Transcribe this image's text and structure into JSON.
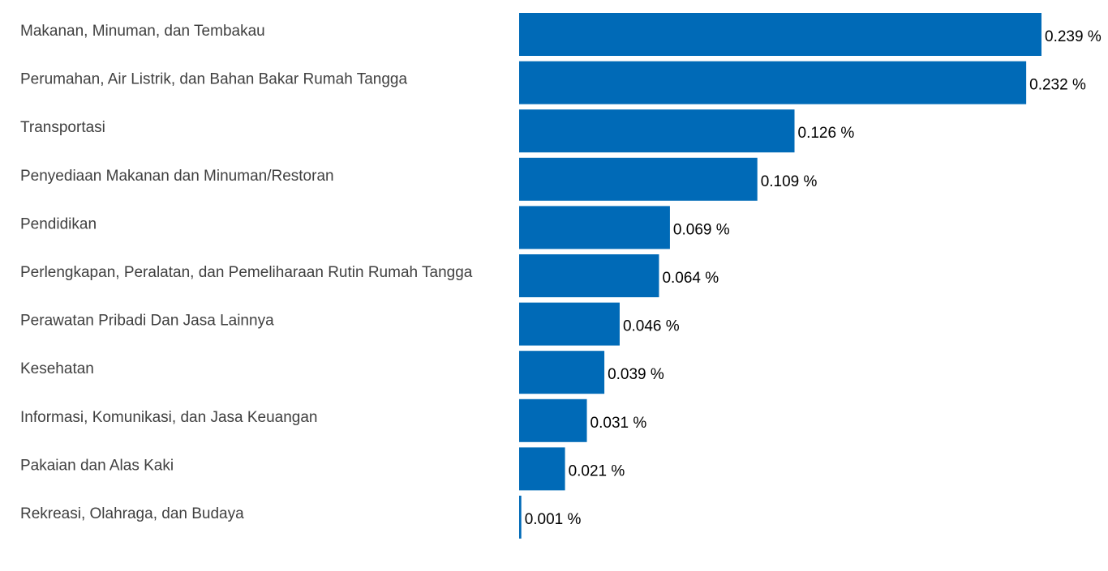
{
  "colors": {
    "bar": "#006ab7",
    "category_text": "#404040",
    "value_text": "#000000",
    "background": "#ffffff"
  },
  "chart_data": {
    "type": "bar",
    "orientation": "horizontal",
    "categories": [
      "Makanan, Minuman, dan Tembakau",
      "Perumahan, Air Listrik, dan Bahan Bakar Rumah Tangga",
      "Transportasi",
      "Penyediaan Makanan dan Minuman/Restoran",
      "Pendidikan",
      "Perlengkapan, Peralatan, dan Pemeliharaan Rutin Rumah Tangga",
      "Perawatan Pribadi Dan Jasa Lainnya",
      "Kesehatan",
      "Informasi, Komunikasi, dan Jasa Keuangan",
      "Pakaian dan Alas Kaki",
      "Rekreasi, Olahraga, dan Budaya"
    ],
    "values": [
      0.239,
      0.232,
      0.126,
      0.109,
      0.069,
      0.064,
      0.046,
      0.039,
      0.031,
      0.021,
      0.001
    ],
    "value_labels": [
      "0.239 %",
      "0.232 %",
      "0.126 %",
      "0.109 %",
      "0.069 %",
      "0.064 %",
      "0.046 %",
      "0.039 %",
      "0.031 %",
      "0.021 %",
      "0.001 %"
    ],
    "xlim": [
      0,
      0.239
    ],
    "grid": false,
    "legend": "none"
  }
}
